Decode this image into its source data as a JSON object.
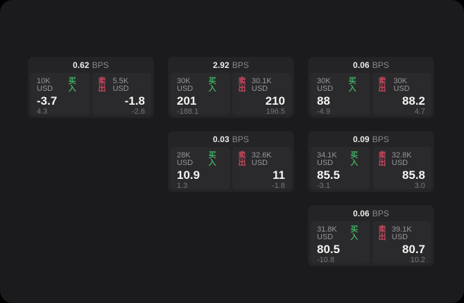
{
  "labels": {
    "bps_unit": "BPS",
    "buy": "买入",
    "sell": "卖出"
  },
  "colors": {
    "page": "#000000",
    "surface": "#1b1b1d",
    "card": "#242426",
    "panel": "#2a2a2c",
    "buy": "#3fae62",
    "sell": "#c8495e"
  },
  "cards": [
    {
      "bps": "0.62",
      "buy": {
        "amount": "10K USD",
        "price": "-3.7",
        "delta": "4.3"
      },
      "sell": {
        "amount": "5.5K USD",
        "price": "-1.8",
        "delta": "-2.6"
      }
    },
    {
      "bps": "2.92",
      "buy": {
        "amount": "30K USD",
        "price": "201",
        "delta": "-188.1"
      },
      "sell": {
        "amount": "30.1K USD",
        "price": "210",
        "delta": "196.5"
      }
    },
    {
      "bps": "0.06",
      "buy": {
        "amount": "30K USD",
        "price": "88",
        "delta": "-4.9"
      },
      "sell": {
        "amount": "30K USD",
        "price": "88.2",
        "delta": "4.7"
      }
    },
    {
      "bps": "0.03",
      "buy": {
        "amount": "28K USD",
        "price": "10.9",
        "delta": "1.3"
      },
      "sell": {
        "amount": "32.6K USD",
        "price": "11",
        "delta": "-1.8"
      }
    },
    {
      "bps": "0.09",
      "buy": {
        "amount": "34.1K USD",
        "price": "85.5",
        "delta": "-3.1"
      },
      "sell": {
        "amount": "32.8K USD",
        "price": "85.8",
        "delta": "3.0"
      }
    },
    {
      "bps": "0.06",
      "buy": {
        "amount": "31.8K USD",
        "price": "80.5",
        "delta": "-10.8"
      },
      "sell": {
        "amount": "39.1K USD",
        "price": "80.7",
        "delta": "10.2"
      }
    }
  ]
}
